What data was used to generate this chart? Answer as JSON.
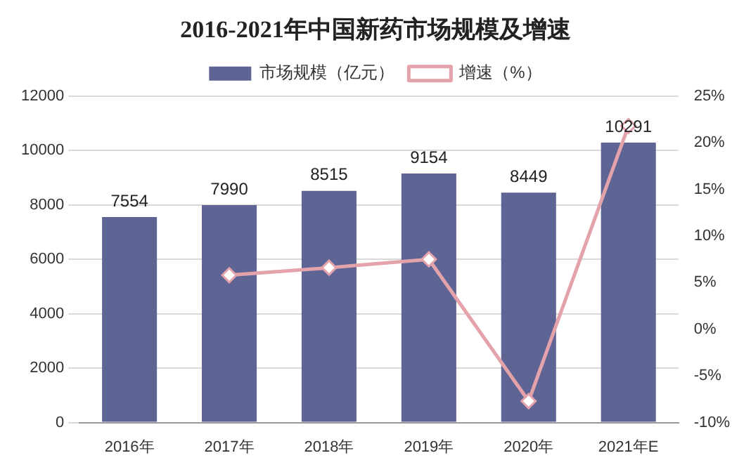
{
  "chart_data": {
    "type": "bar",
    "title": "2016-2021年中国新药市场规模及增速",
    "categories": [
      "2016年",
      "2017年",
      "2018年",
      "2019年",
      "2020年",
      "2021年E"
    ],
    "series": [
      {
        "name": "市场规模（亿元）",
        "color": "#5e6494",
        "values": [
          7554,
          7990,
          8515,
          9154,
          8449,
          10291
        ],
        "value_labels": [
          "7554",
          "7990",
          "8515",
          "9154",
          "8449",
          "10291"
        ]
      },
      {
        "name": "增速（%）",
        "type": "line",
        "axis": "y2",
        "color": "#e4a3ab",
        "marker": "diamond",
        "values": [
          null,
          5.8,
          6.6,
          7.5,
          -7.7,
          21.8
        ]
      }
    ],
    "ylim": [
      0,
      12000
    ],
    "yticks": [
      0,
      2000,
      4000,
      6000,
      8000,
      10000,
      12000
    ],
    "y2lim": [
      -10,
      25
    ],
    "y2ticks": [
      {
        "value": -10,
        "label": "-10%"
      },
      {
        "value": -5,
        "label": "-5%"
      },
      {
        "value": 0,
        "label": "0%"
      },
      {
        "value": 5,
        "label": "5%"
      },
      {
        "value": 10,
        "label": "10%"
      },
      {
        "value": 15,
        "label": "15%"
      },
      {
        "value": 20,
        "label": "20%"
      },
      {
        "value": 25,
        "label": "25%"
      }
    ],
    "grid": "y",
    "legend": "top"
  }
}
